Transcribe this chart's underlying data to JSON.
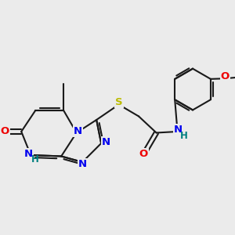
{
  "bg_color": "#ebebeb",
  "bond_color": "#1a1a1a",
  "bond_width": 1.5,
  "atom_colors": {
    "N": "#0000ee",
    "O": "#ee0000",
    "S": "#bbbb00",
    "H_NH": "#008080",
    "C": "#1a1a1a"
  },
  "font_size_atom": 9.5,
  "font_size_h": 8.5
}
